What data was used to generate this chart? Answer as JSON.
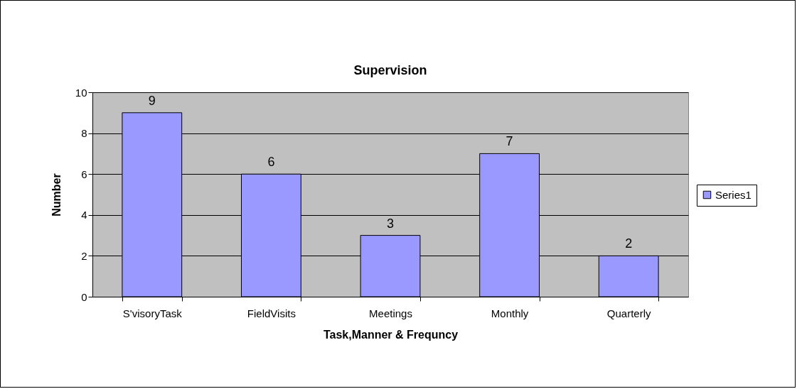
{
  "chart_data": {
    "type": "bar",
    "title": "Supervision",
    "xlabel": "Task,Manner & Frequncy",
    "ylabel": "Number",
    "categories": [
      "S'visoryTask",
      "FieldVisits",
      "Meetings",
      "Monthly",
      "Quarterly"
    ],
    "series": [
      {
        "name": "Series1",
        "color": "#9999ff",
        "values": [
          9,
          6,
          3,
          7,
          2
        ]
      }
    ],
    "ylim": [
      0,
      10
    ],
    "yticks": [
      0,
      2,
      4,
      6,
      8,
      10
    ],
    "grid": "y",
    "legend": "right",
    "data_labels": true
  }
}
